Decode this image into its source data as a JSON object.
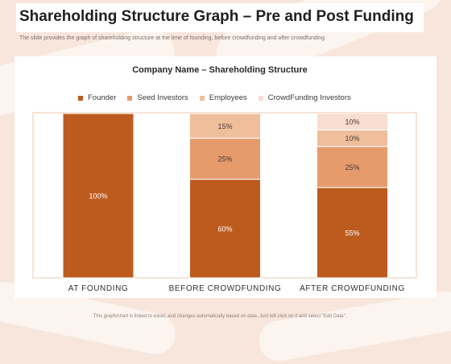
{
  "header": {
    "title": "Shareholding Structure Graph – Pre and Post Funding",
    "subtitle": "The slide provides the graph of shareholding  structure at the time of founding,  before crowdfunding  and after crowdfunding"
  },
  "footer": {
    "note": "This graph/chart is linked to excel, and changes automatically based on data. Just left click on it and select “Edit Data”."
  },
  "colors": {
    "Founder": "#bd5b1f",
    "Seed Investors": "#e69b6c",
    "Employees": "#efbe9b",
    "CrowdFunding Investors": "#f8ddd0"
  },
  "chart_data": {
    "type": "bar",
    "stacked": true,
    "title": "Company Name – Shareholding Structure",
    "categories": [
      "AT FOUNDING",
      "BEFORE CROWDFUNDING",
      "AFTER CROWDFUNDING"
    ],
    "series": [
      {
        "name": "Founder",
        "values": [
          100,
          60,
          55
        ],
        "labels": [
          "100%",
          "60%",
          "55%"
        ]
      },
      {
        "name": "Seed Investors",
        "values": [
          0,
          25,
          25
        ],
        "labels": [
          "",
          "25%",
          "25%"
        ]
      },
      {
        "name": "Employees",
        "values": [
          0,
          15,
          10
        ],
        "labels": [
          "",
          "15%",
          "10%"
        ]
      },
      {
        "name": "CrowdFunding Investors",
        "values": [
          0,
          0,
          10
        ],
        "labels": [
          "",
          "",
          "10%"
        ]
      }
    ],
    "ylim": [
      0,
      100
    ],
    "legend": "top",
    "grid": false
  }
}
